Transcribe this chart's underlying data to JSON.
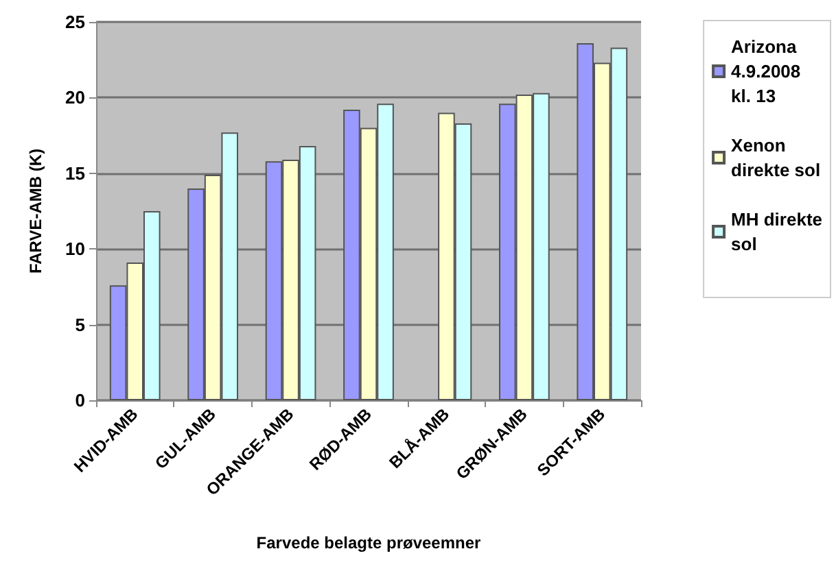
{
  "chart_data": {
    "type": "bar",
    "xlabel": "Farvede belagte prøveemner",
    "ylabel": "FARVE-AMB (K)",
    "categories": [
      "HVID-AMB",
      "GUL-AMB",
      "ORANGE-AMB",
      "RØD-AMB",
      "BLÅ-AMB",
      "GRØN-AMB",
      "SORT-AMB"
    ],
    "series": [
      {
        "name": "Arizona\n4.9.2008\nkl. 13",
        "color": "#9999ff",
        "values": [
          7.6,
          14.0,
          15.8,
          19.2,
          null,
          19.6,
          23.6
        ]
      },
      {
        "name": "Xenon\ndirekte sol",
        "color": "#ffffcc",
        "values": [
          9.1,
          14.9,
          15.9,
          18.0,
          19.0,
          20.2,
          22.3
        ]
      },
      {
        "name": "MH direkte\nsol",
        "color": "#ccffff",
        "values": [
          12.5,
          17.7,
          16.8,
          19.6,
          18.3,
          20.3,
          23.3
        ]
      }
    ],
    "ylim": [
      0,
      25
    ],
    "yticks": [
      0,
      5,
      10,
      15,
      20,
      25
    ],
    "grid": "y",
    "legend": "right"
  }
}
